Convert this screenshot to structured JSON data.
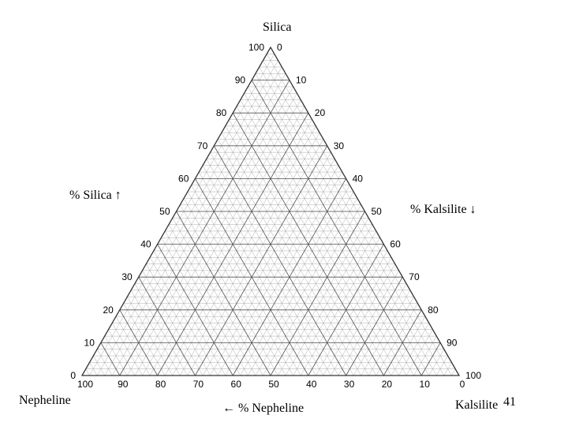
{
  "diagram": {
    "vertices": {
      "top": "Silica",
      "bottom_left": "Nepheline",
      "bottom_right": "Kalsilite"
    },
    "axis_titles": {
      "left": "% Silica ↑",
      "right": "% Kalsilite ↓",
      "bottom": "← % Nepheline"
    },
    "left_ticks": [
      "0",
      "10",
      "20",
      "30",
      "40",
      "50",
      "60",
      "70",
      "80",
      "90",
      "100"
    ],
    "right_ticks": [
      "0",
      "10",
      "20",
      "30",
      "40",
      "50",
      "60",
      "70",
      "80",
      "90",
      "100"
    ],
    "bottom_ticks": [
      "100",
      "90",
      "80",
      "70",
      "60",
      "50",
      "40",
      "30",
      "20",
      "10",
      "0"
    ],
    "page_number": "41",
    "colors": {
      "grid": "#555555",
      "fine_grid": "#8a8a8a",
      "text": "#000000"
    }
  }
}
